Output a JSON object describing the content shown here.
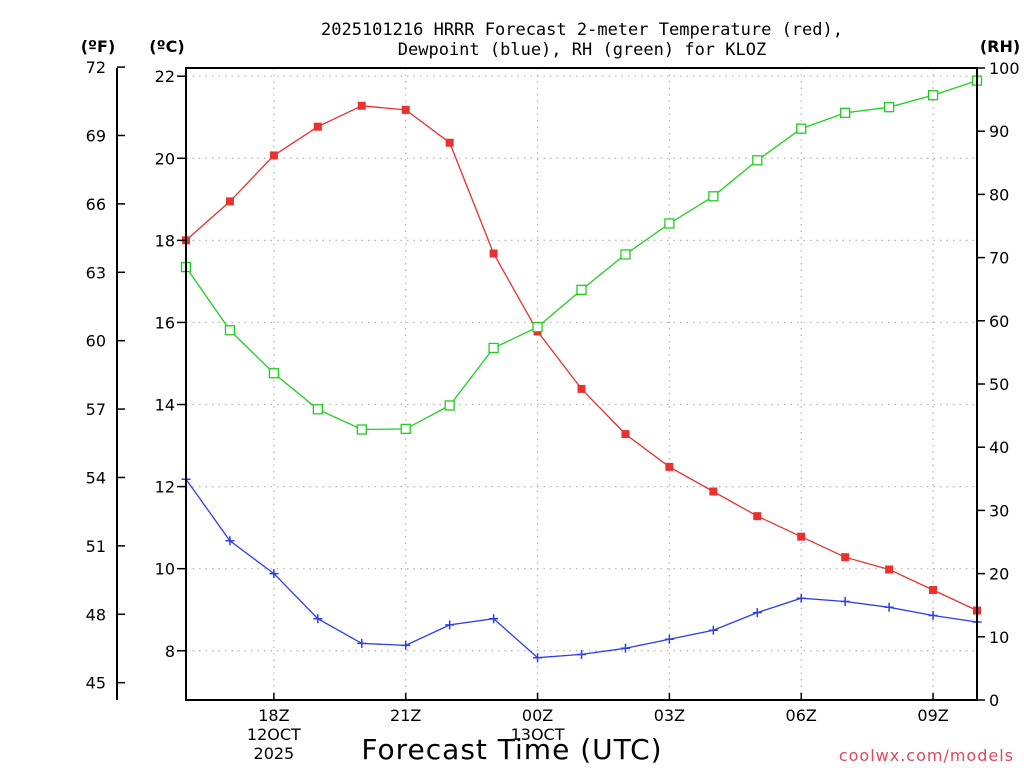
{
  "chart_data": {
    "type": "line",
    "title_line1": "2025101216 HRRR Forecast 2-meter Temperature (red),",
    "title_line2": "Dewpoint (blue), RH (green) for KLOZ",
    "xlabel": "Forecast Time (UTC)",
    "credit": "coolwx.com/models",
    "unit_f": "(ºF)",
    "unit_c": "(ºC)",
    "unit_rh": "(RH)",
    "x_hours": [
      16,
      17,
      18,
      19,
      20,
      21,
      22,
      23,
      24,
      25,
      26,
      27,
      28,
      29,
      30,
      31,
      32,
      33,
      34
    ],
    "xlim": [
      16,
      34
    ],
    "c_lim": [
      6.8,
      22.2
    ],
    "rh_lim": [
      0,
      100
    ],
    "f_lim": [
      44.24,
      71.96
    ],
    "c_ticks": [
      8,
      10,
      12,
      14,
      16,
      18,
      20,
      22
    ],
    "f_ticks": [
      45,
      48,
      51,
      54,
      57,
      60,
      63,
      66,
      69,
      72
    ],
    "rh_ticks": [
      0,
      10,
      20,
      30,
      40,
      50,
      60,
      70,
      80,
      90,
      100
    ],
    "x_ticks": [
      {
        "hour": 18,
        "lines": [
          "18Z",
          "12OCT",
          "2025"
        ]
      },
      {
        "hour": 21,
        "lines": [
          "21Z"
        ]
      },
      {
        "hour": 24,
        "lines": [
          "00Z",
          "13OCT"
        ]
      },
      {
        "hour": 27,
        "lines": [
          "03Z"
        ]
      },
      {
        "hour": 30,
        "lines": [
          "06Z"
        ]
      },
      {
        "hour": 33,
        "lines": [
          "09Z"
        ]
      }
    ],
    "series": [
      {
        "name": "Temperature",
        "axis": "c",
        "color": "#e8322f",
        "marker": "filled-square",
        "values": [
          18.0,
          18.95,
          20.07,
          20.77,
          21.28,
          21.18,
          20.38,
          17.68,
          15.78,
          14.38,
          13.28,
          12.48,
          11.88,
          11.28,
          10.78,
          10.28,
          9.98,
          9.48,
          8.98
        ]
      },
      {
        "name": "Dewpoint",
        "axis": "c",
        "color": "#2d3ee6",
        "marker": "plus",
        "values": [
          12.18,
          10.68,
          9.88,
          8.78,
          8.18,
          8.13,
          8.63,
          8.78,
          7.83,
          7.91,
          8.06,
          8.28,
          8.5,
          8.93,
          9.28,
          9.2,
          9.06,
          8.86,
          8.7
        ]
      },
      {
        "name": "RH",
        "axis": "rh",
        "color": "#1ed01e",
        "marker": "open-square",
        "values": [
          68.5,
          58.5,
          51.7,
          46.0,
          42.8,
          42.9,
          46.6,
          55.7,
          59.0,
          64.9,
          70.5,
          75.4,
          79.7,
          85.4,
          90.4,
          92.9,
          93.8,
          95.7,
          98.0
        ]
      }
    ]
  }
}
